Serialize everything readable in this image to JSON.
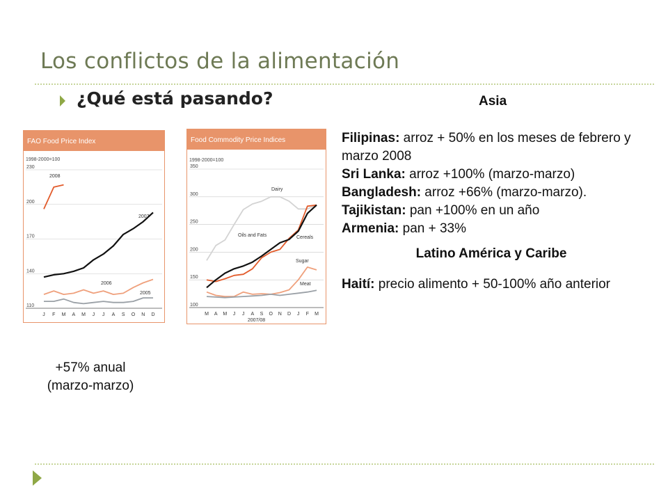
{
  "slide": {
    "title": "Los conflictos de la alimentación",
    "subtitle": "¿Qué está pasando?",
    "caption_line1": "+57% anual",
    "caption_line2": "(marzo-marzo)"
  },
  "right": {
    "asia_heading": "Asia",
    "items": [
      {
        "label": "Filipinas:",
        "text": " arroz + 50% en los meses de febrero y marzo 2008"
      },
      {
        "label": "Sri Lanka:",
        "text": " arroz +100% (marzo-marzo)"
      },
      {
        "label": "Bangladesh:",
        "text": " arroz +66% (marzo-marzo)."
      },
      {
        "label": "Tajikistan:",
        "text": " pan +100% en un año"
      },
      {
        "label": "Armenia:",
        "text": " pan + 33%"
      }
    ],
    "latam_heading": "Latino América y Caribe",
    "latam_items": [
      {
        "label": "Haití:",
        "text": " precio alimento + 50-100% año anterior"
      }
    ]
  },
  "colors": {
    "header_orange": "#e8946a",
    "series_dark": "#111111",
    "series_orange": "#e25b2b",
    "series_light_orange": "#efa07c",
    "series_grey": "#9aa0a6",
    "series_light_grey": "#d3d3d3",
    "accent_green": "#8fa846"
  },
  "chart_data": [
    {
      "type": "line",
      "title": "FAO Food Price Index",
      "subtitle": "1998-2000=100",
      "categories": [
        "J",
        "F",
        "M",
        "A",
        "M",
        "J",
        "J",
        "A",
        "S",
        "O",
        "N",
        "D"
      ],
      "ylim": [
        110,
        230
      ],
      "yticks": [
        110,
        140,
        170,
        200,
        230
      ],
      "series": [
        {
          "name": "2008",
          "color": "#e25b2b",
          "values": [
            196,
            215,
            217,
            null,
            null,
            null,
            null,
            null,
            null,
            null,
            null,
            null
          ]
        },
        {
          "name": "2007",
          "color": "#111111",
          "values": [
            137,
            139,
            140,
            142,
            145,
            152,
            157,
            164,
            174,
            179,
            185,
            193
          ]
        },
        {
          "name": "2006",
          "color": "#efa07c",
          "values": [
            122,
            125,
            122,
            123,
            126,
            123,
            125,
            122,
            123,
            128,
            132,
            135
          ]
        },
        {
          "name": "2005",
          "color": "#9aa0a6",
          "values": [
            116,
            116,
            118,
            115,
            114,
            115,
            116,
            115,
            115,
            116,
            119,
            119
          ]
        }
      ]
    },
    {
      "type": "line",
      "title": "Food Commodity Price Indices",
      "subtitle": "1998-2000=100",
      "xlabel": "2007/08",
      "categories": [
        "M",
        "A",
        "M",
        "J",
        "J",
        "A",
        "S",
        "O",
        "N",
        "D",
        "J",
        "F",
        "M"
      ],
      "ylim": [
        100,
        350
      ],
      "yticks": [
        100,
        150,
        200,
        250,
        300,
        350
      ],
      "series": [
        {
          "name": "Dairy",
          "color": "#d3d3d3",
          "values": [
            185,
            212,
            222,
            250,
            277,
            287,
            292,
            300,
            300,
            292,
            278,
            278,
            285
          ]
        },
        {
          "name": "Oils and Fats",
          "color": "#e25b2b",
          "values": [
            150,
            147,
            152,
            158,
            160,
            170,
            190,
            200,
            205,
            225,
            240,
            283,
            285
          ]
        },
        {
          "name": "Cereals",
          "color": "#111111",
          "values": [
            136,
            150,
            162,
            170,
            175,
            182,
            193,
            205,
            217,
            223,
            238,
            270,
            285
          ]
        },
        {
          "name": "Sugar",
          "color": "#efa07c",
          "values": [
            128,
            122,
            120,
            120,
            128,
            124,
            125,
            124,
            127,
            132,
            150,
            173,
            168
          ]
        },
        {
          "name": "Meat",
          "color": "#9aa0a6",
          "values": [
            120,
            119,
            118,
            119,
            120,
            121,
            122,
            124,
            122,
            124,
            126,
            128,
            131
          ]
        }
      ]
    }
  ]
}
